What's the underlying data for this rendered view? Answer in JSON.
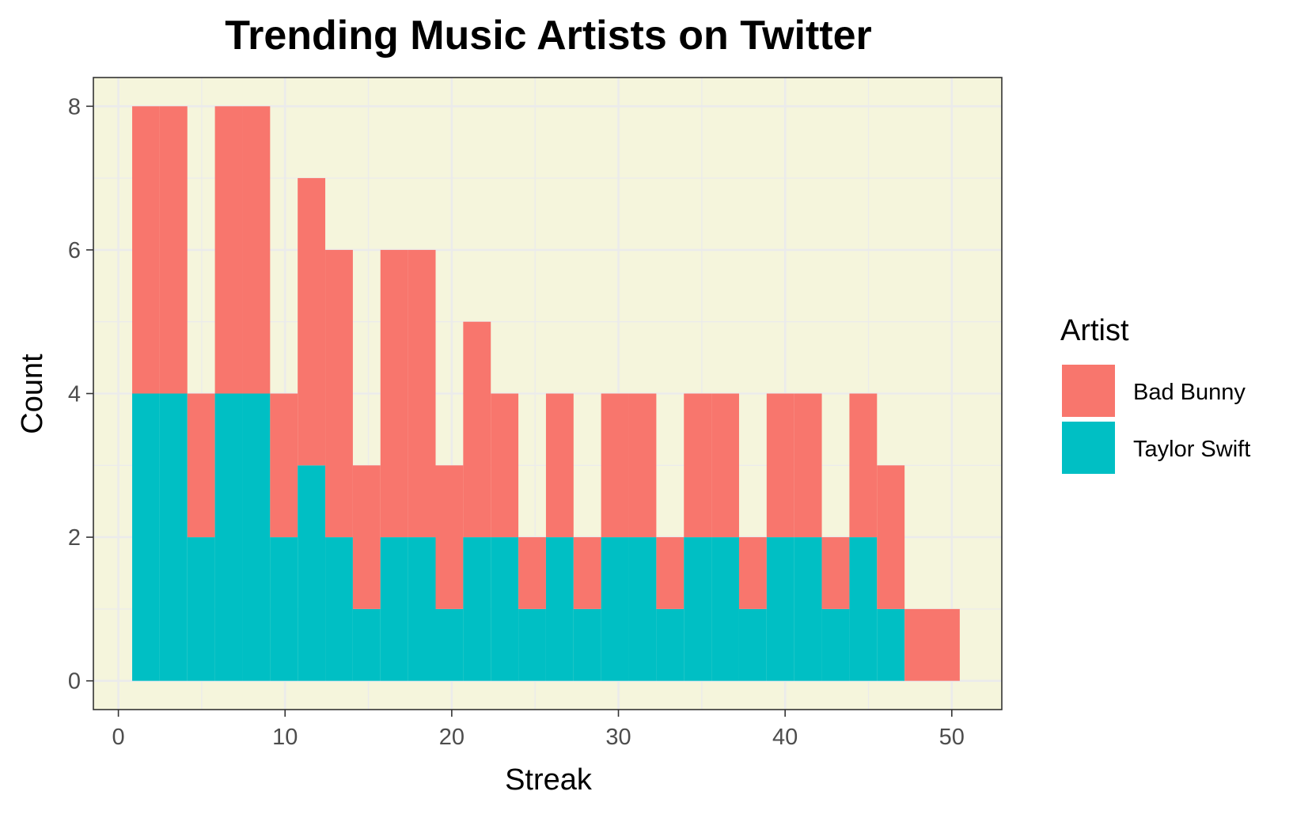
{
  "chart_data": {
    "type": "bar",
    "stacked": true,
    "title": "Trending Music Artists on Twitter",
    "xlabel": "Streak",
    "ylabel": "Count",
    "xlim": [
      -1.5,
      53
    ],
    "ylim": [
      -0.4,
      8.4
    ],
    "x_ticks": [
      0,
      10,
      20,
      30,
      40,
      50
    ],
    "y_ticks": [
      0,
      2,
      4,
      6,
      8
    ],
    "grid": true,
    "bin_width": 1.655,
    "bin_centers": [
      1.655,
      3.31,
      4.965,
      6.62,
      8.275,
      9.93,
      11.585,
      13.24,
      14.895,
      16.55,
      18.205,
      19.86,
      21.515,
      23.17,
      24.825,
      26.48,
      28.135,
      29.79,
      31.445,
      33.1,
      34.755,
      36.41,
      38.065,
      39.72,
      41.375,
      43.03,
      44.685,
      46.34,
      47.995,
      49.65
    ],
    "series": [
      {
        "name": "Taylor Swift",
        "color": "#00BFC4",
        "values": [
          4,
          4,
          2,
          4,
          4,
          2,
          3,
          2,
          1,
          2,
          2,
          1,
          2,
          2,
          1,
          2,
          1,
          2,
          2,
          1,
          2,
          2,
          1,
          2,
          2,
          1,
          2,
          1,
          0,
          0
        ]
      },
      {
        "name": "Bad Bunny",
        "color": "#F8766D",
        "values": [
          4,
          4,
          2,
          4,
          4,
          2,
          4,
          4,
          2,
          4,
          4,
          2,
          3,
          2,
          1,
          2,
          1,
          2,
          2,
          1,
          2,
          2,
          1,
          2,
          2,
          1,
          2,
          2,
          1,
          1
        ]
      }
    ],
    "legend": {
      "title": "Artist",
      "position": "right",
      "entries": [
        {
          "label": "Bad Bunny",
          "color": "#F8766D"
        },
        {
          "label": "Taylor Swift",
          "color": "#00BFC4"
        }
      ]
    },
    "panel_background": "#F5F5DC",
    "grid_color": "#EBEBEB"
  }
}
